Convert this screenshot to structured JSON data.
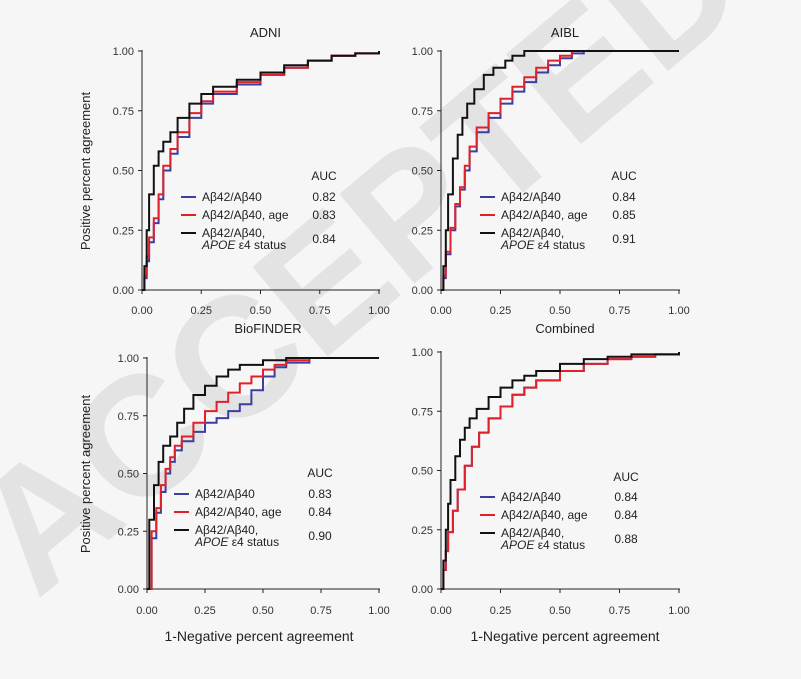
{
  "figure": {
    "ylabel": "Positive percent agreement",
    "xlabel": "1-Negative percent agreement",
    "watermark": "ACCEPTED"
  },
  "colors": {
    "series1": "#3b3fa0",
    "series2": "#e0212a",
    "series3": "#111111",
    "axis": "#222222",
    "tick_text": "#333333"
  },
  "chart_data": [
    {
      "type": "line",
      "title": "ADNI",
      "xlabel": "",
      "ylabel": "Positive percent agreement",
      "xlim": [
        0,
        1
      ],
      "ylim": [
        0,
        1
      ],
      "xticks": [
        "0.00",
        "0.25",
        "0.50",
        "0.75",
        "1.00"
      ],
      "yticks": [
        "0.00",
        "0.25",
        "0.50",
        "0.75",
        "1.00"
      ],
      "legend_header": "AUC",
      "series": [
        {
          "name": "Aβ42/Aβ40",
          "name_line2": "",
          "auc": "0.82",
          "color_key": "series1",
          "x": [
            0,
            0.01,
            0.02,
            0.03,
            0.05,
            0.07,
            0.09,
            0.12,
            0.15,
            0.2,
            0.25,
            0.3,
            0.4,
            0.5,
            0.6,
            0.7,
            0.8,
            0.9,
            1.0
          ],
          "y": [
            0,
            0.05,
            0.12,
            0.2,
            0.28,
            0.38,
            0.5,
            0.57,
            0.64,
            0.72,
            0.78,
            0.82,
            0.86,
            0.9,
            0.93,
            0.96,
            0.98,
            0.99,
            1.0
          ]
        },
        {
          "name": "Aβ42/Aβ40, age",
          "name_line2": "",
          "auc": "0.83",
          "color_key": "series2",
          "x": [
            0,
            0.01,
            0.02,
            0.03,
            0.05,
            0.07,
            0.09,
            0.12,
            0.15,
            0.2,
            0.25,
            0.3,
            0.4,
            0.5,
            0.6,
            0.7,
            0.8,
            0.9,
            1.0
          ],
          "y": [
            0,
            0.06,
            0.14,
            0.22,
            0.3,
            0.4,
            0.52,
            0.59,
            0.66,
            0.74,
            0.79,
            0.83,
            0.87,
            0.9,
            0.93,
            0.96,
            0.98,
            0.99,
            1.0
          ]
        },
        {
          "name": "Aβ42/Aβ40,",
          "name_line2": "APOE ε4 status",
          "auc": "0.84",
          "color_key": "series3",
          "x": [
            0,
            0.01,
            0.02,
            0.03,
            0.05,
            0.07,
            0.09,
            0.12,
            0.15,
            0.2,
            0.25,
            0.3,
            0.4,
            0.5,
            0.6,
            0.7,
            0.8,
            0.9,
            1.0
          ],
          "y": [
            0,
            0.1,
            0.25,
            0.4,
            0.52,
            0.58,
            0.62,
            0.66,
            0.72,
            0.78,
            0.82,
            0.85,
            0.88,
            0.91,
            0.94,
            0.96,
            0.98,
            0.99,
            1.0
          ]
        }
      ]
    },
    {
      "type": "line",
      "title": "AIBL",
      "xlabel": "",
      "ylabel": "",
      "xlim": [
        0,
        1
      ],
      "ylim": [
        0,
        1
      ],
      "xticks": [
        "0.00",
        "0.25",
        "0.50",
        "0.75",
        "1.00"
      ],
      "yticks": [
        "0.00",
        "0.25",
        "0.50",
        "0.75",
        "1.00"
      ],
      "legend_header": "AUC",
      "series": [
        {
          "name": "Aβ42/Aβ40",
          "name_line2": "",
          "auc": "0.84",
          "color_key": "series1",
          "x": [
            0,
            0.01,
            0.02,
            0.04,
            0.06,
            0.08,
            0.1,
            0.12,
            0.15,
            0.2,
            0.25,
            0.3,
            0.35,
            0.4,
            0.45,
            0.5,
            0.55,
            0.6,
            0.75,
            1.0
          ],
          "y": [
            0,
            0.05,
            0.15,
            0.25,
            0.35,
            0.42,
            0.5,
            0.58,
            0.66,
            0.72,
            0.78,
            0.83,
            0.87,
            0.91,
            0.94,
            0.97,
            0.99,
            1.0,
            1.0,
            1.0
          ]
        },
        {
          "name": "Aβ42/Aβ40, age",
          "name_line2": "",
          "auc": "0.85",
          "color_key": "series2",
          "x": [
            0,
            0.01,
            0.02,
            0.04,
            0.06,
            0.08,
            0.1,
            0.12,
            0.15,
            0.2,
            0.25,
            0.3,
            0.35,
            0.4,
            0.45,
            0.5,
            0.55,
            0.6,
            0.75,
            1.0
          ],
          "y": [
            0,
            0.06,
            0.16,
            0.26,
            0.36,
            0.43,
            0.52,
            0.6,
            0.68,
            0.74,
            0.8,
            0.85,
            0.89,
            0.93,
            0.96,
            0.98,
            1.0,
            1.0,
            1.0,
            1.0
          ]
        },
        {
          "name": "Aβ42/Aβ40,",
          "name_line2": "APOE ε4 status",
          "auc": "0.91",
          "color_key": "series3",
          "x": [
            0,
            0.01,
            0.02,
            0.03,
            0.05,
            0.07,
            0.09,
            0.11,
            0.14,
            0.18,
            0.22,
            0.27,
            0.3,
            0.35,
            0.4,
            0.5,
            0.75,
            1.0
          ],
          "y": [
            0,
            0.1,
            0.25,
            0.4,
            0.55,
            0.65,
            0.72,
            0.78,
            0.84,
            0.9,
            0.93,
            0.96,
            0.98,
            1.0,
            1.0,
            1.0,
            1.0,
            1.0
          ]
        }
      ]
    },
    {
      "type": "line",
      "title": "BioFINDER",
      "xlabel": "1-Negative percent agreement",
      "ylabel": "Positive percent agreement",
      "xlim": [
        0,
        1
      ],
      "ylim": [
        0,
        1
      ],
      "xticks": [
        "0.00",
        "0.25",
        "0.50",
        "0.75",
        "1.00"
      ],
      "yticks": [
        "0.00",
        "0.25",
        "0.50",
        "0.75",
        "1.00"
      ],
      "legend_header": "AUC",
      "series": [
        {
          "name": "Aβ42/Aβ40",
          "name_line2": "",
          "auc": "0.83",
          "color_key": "series1",
          "x": [
            0,
            0.02,
            0.04,
            0.06,
            0.08,
            0.1,
            0.12,
            0.15,
            0.2,
            0.25,
            0.3,
            0.35,
            0.4,
            0.45,
            0.5,
            0.55,
            0.6,
            0.7,
            0.8,
            0.9,
            1.0
          ],
          "y": [
            0,
            0.22,
            0.33,
            0.42,
            0.5,
            0.55,
            0.6,
            0.64,
            0.68,
            0.72,
            0.74,
            0.77,
            0.8,
            0.86,
            0.92,
            0.96,
            0.98,
            1.0,
            1.0,
            1.0,
            1.0
          ]
        },
        {
          "name": "Aβ42/Aβ40, age",
          "name_line2": "",
          "auc": "0.84",
          "color_key": "series2",
          "x": [
            0,
            0.02,
            0.04,
            0.06,
            0.08,
            0.1,
            0.12,
            0.15,
            0.2,
            0.25,
            0.3,
            0.35,
            0.4,
            0.45,
            0.5,
            0.55,
            0.6,
            0.7,
            0.8,
            0.9,
            1.0
          ],
          "y": [
            0,
            0.25,
            0.35,
            0.45,
            0.52,
            0.57,
            0.62,
            0.66,
            0.72,
            0.77,
            0.81,
            0.85,
            0.89,
            0.92,
            0.95,
            0.97,
            0.99,
            1.0,
            1.0,
            1.0,
            1.0
          ]
        },
        {
          "name": "Aβ42/Aβ40,",
          "name_line2": "APOE ε4 status",
          "auc": "0.90",
          "color_key": "series3",
          "x": [
            0,
            0.01,
            0.03,
            0.05,
            0.07,
            0.1,
            0.13,
            0.16,
            0.2,
            0.25,
            0.3,
            0.35,
            0.4,
            0.5,
            0.6,
            0.8,
            1.0
          ],
          "y": [
            0,
            0.3,
            0.45,
            0.55,
            0.62,
            0.66,
            0.72,
            0.78,
            0.84,
            0.88,
            0.92,
            0.95,
            0.97,
            0.99,
            1.0,
            1.0,
            1.0
          ]
        }
      ]
    },
    {
      "type": "line",
      "title": "Combined",
      "xlabel": "1-Negative percent agreement",
      "ylabel": "",
      "xlim": [
        0,
        1
      ],
      "ylim": [
        0,
        1
      ],
      "xticks": [
        "0.00",
        "0.25",
        "0.50",
        "0.75",
        "1.00"
      ],
      "yticks": [
        "0.00",
        "0.25",
        "0.50",
        "0.75",
        "1.00"
      ],
      "legend_header": "AUC",
      "series": [
        {
          "name": "Aβ42/Aβ40",
          "name_line2": "",
          "auc": "0.84",
          "color_key": "series1",
          "x": [
            0,
            0.01,
            0.02,
            0.03,
            0.05,
            0.07,
            0.1,
            0.13,
            0.16,
            0.2,
            0.25,
            0.3,
            0.35,
            0.4,
            0.5,
            0.6,
            0.7,
            0.8,
            0.9,
            1.0
          ],
          "y": [
            0,
            0.08,
            0.16,
            0.24,
            0.33,
            0.42,
            0.52,
            0.6,
            0.66,
            0.72,
            0.77,
            0.82,
            0.85,
            0.88,
            0.92,
            0.95,
            0.97,
            0.98,
            0.99,
            1.0
          ]
        },
        {
          "name": "Aβ42/Aβ40, age",
          "name_line2": "",
          "auc": "0.84",
          "color_key": "series2",
          "x": [
            0,
            0.01,
            0.02,
            0.03,
            0.05,
            0.07,
            0.1,
            0.13,
            0.16,
            0.2,
            0.25,
            0.3,
            0.35,
            0.4,
            0.5,
            0.6,
            0.7,
            0.8,
            0.9,
            1.0
          ],
          "y": [
            0,
            0.08,
            0.16,
            0.24,
            0.33,
            0.42,
            0.52,
            0.6,
            0.66,
            0.72,
            0.77,
            0.82,
            0.85,
            0.88,
            0.92,
            0.95,
            0.97,
            0.98,
            0.99,
            1.0
          ]
        },
        {
          "name": "Aβ42/Aβ40,",
          "name_line2": "APOE ε4 status",
          "auc": "0.88",
          "color_key": "series3",
          "x": [
            0,
            0.01,
            0.02,
            0.03,
            0.04,
            0.06,
            0.08,
            0.1,
            0.12,
            0.15,
            0.2,
            0.25,
            0.3,
            0.35,
            0.4,
            0.5,
            0.6,
            0.7,
            0.8,
            0.9,
            1.0
          ],
          "y": [
            0,
            0.12,
            0.25,
            0.36,
            0.46,
            0.56,
            0.63,
            0.68,
            0.72,
            0.76,
            0.81,
            0.85,
            0.88,
            0.9,
            0.92,
            0.95,
            0.97,
            0.98,
            0.99,
            0.99,
            1.0
          ]
        }
      ]
    }
  ]
}
